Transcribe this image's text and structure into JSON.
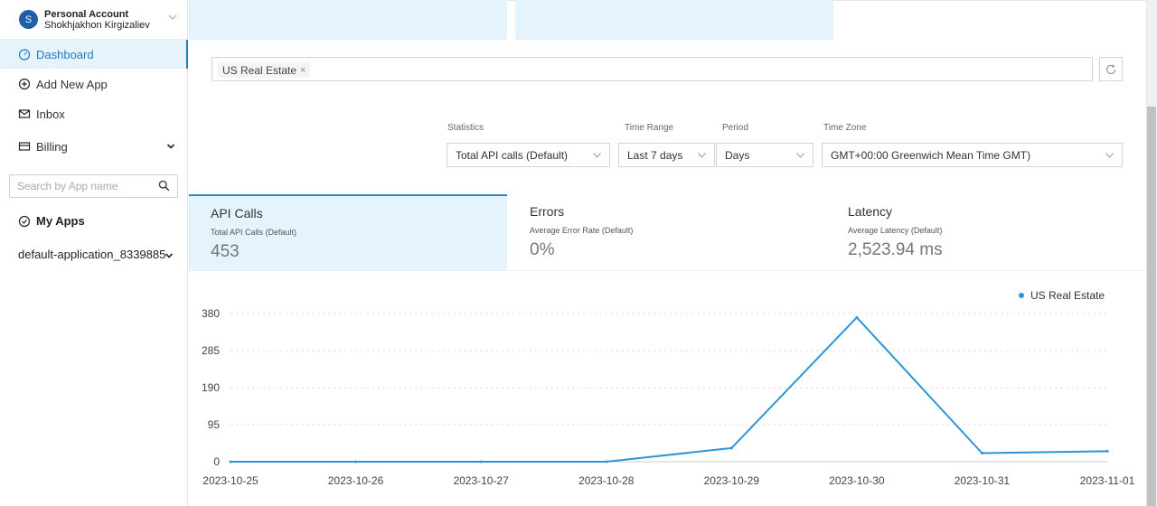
{
  "account": {
    "initial": "S",
    "title": "Personal Account",
    "name": "Shokhjakhon Kirgizaliev"
  },
  "nav": [
    {
      "label": "Dashboard",
      "icon": "dashboard-icon",
      "active": true
    },
    {
      "label": "Add New App",
      "icon": "plus-circle-icon"
    },
    {
      "label": "Inbox",
      "icon": "inbox-icon"
    },
    {
      "label": "Billing",
      "icon": "billing-icon"
    }
  ],
  "search": {
    "placeholder": "Search by App name"
  },
  "apps": {
    "heading": "My Apps",
    "item": "default-application_8339885"
  },
  "filter": {
    "tag": "US Real Estate",
    "tag_remove": "×"
  },
  "labels": {
    "statistics": "Statistics",
    "time_range": "Time Range",
    "period": "Period",
    "time_zone": "Time Zone"
  },
  "selects": {
    "statistics": "Total API calls (Default)",
    "time_range": "Last 7 days",
    "period": "Days",
    "time_zone": "GMT+00:00 Greenwich Mean Time GMT)"
  },
  "stats": [
    {
      "title": "API Calls",
      "sub": "Total API Calls (Default)",
      "value": "453",
      "active": true
    },
    {
      "title": "Errors",
      "sub": "Average Error Rate (Default)",
      "value": "0%"
    },
    {
      "title": "Latency",
      "sub": "Average Latency (Default)",
      "value": "2,523.94 ms"
    }
  ],
  "chart_data": {
    "type": "line",
    "x": [
      "2023-10-25",
      "2023-10-26",
      "2023-10-27",
      "2023-10-28",
      "2023-10-29",
      "2023-10-30",
      "2023-10-31",
      "2023-11-01"
    ],
    "series": [
      {
        "name": "US Real Estate",
        "values": [
          0,
          0,
          0,
          0,
          35,
          370,
          22,
          27
        ]
      }
    ],
    "yticks": [
      0,
      95,
      190,
      285,
      380
    ],
    "ylim": [
      0,
      380
    ],
    "grid": true,
    "legend": "top-right",
    "color": "#2b95d9"
  }
}
